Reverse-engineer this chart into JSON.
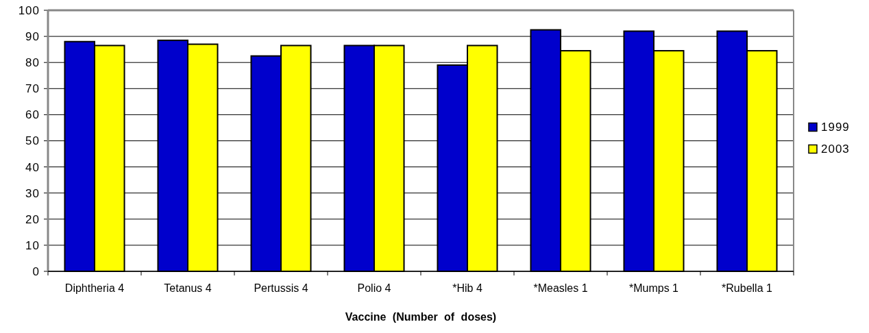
{
  "chart_data": {
    "type": "bar",
    "xlabel": "Vaccine (Number of doses)",
    "categories": [
      "Diphtheria 4",
      "Tetanus 4",
      "Pertussis 4",
      "Polio 4",
      "*Hib 4",
      "*Measles 1",
      "*Mumps 1",
      "*Rubella 1"
    ],
    "series": [
      {
        "name": "1999",
        "color": "#0000cc",
        "values": [
          88,
          88.5,
          82.5,
          86.5,
          79,
          92.5,
          92,
          92
        ]
      },
      {
        "name": "2003",
        "color": "#ffff00",
        "values": [
          86.5,
          87,
          86.5,
          86.5,
          86.5,
          84.5,
          84.5,
          84.5
        ]
      }
    ],
    "ylim": [
      0,
      100
    ],
    "yticks": [
      0,
      10,
      20,
      30,
      40,
      50,
      60,
      70,
      80,
      90,
      100
    ],
    "grid": "y",
    "legend": "right"
  }
}
